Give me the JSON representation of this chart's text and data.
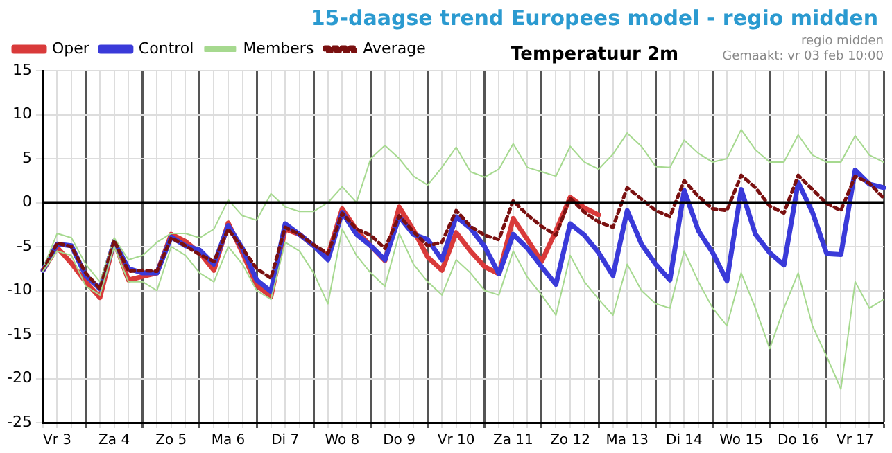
{
  "chart_data": {
    "type": "line",
    "title": "15-daagse trend Europees model - regio midden",
    "subtitle": "Temperatuur 2m",
    "annotations": [
      "regio midden",
      "Gemaakt: vr 03 feb 10:00"
    ],
    "categories": [
      null,
      "Vr 3",
      null,
      null,
      null,
      "Za 4",
      null,
      null,
      null,
      "Zo 5",
      null,
      null,
      null,
      "Ma 6",
      null,
      null,
      null,
      "Di 7",
      null,
      null,
      null,
      "Wo 8",
      null,
      null,
      null,
      "Do 9",
      null,
      null,
      null,
      "Vr 10",
      null,
      null,
      null,
      "Za 11",
      null,
      null,
      null,
      "Zo 12",
      null,
      null,
      null,
      "Ma 13",
      null,
      null,
      null,
      "Di 14",
      null,
      null,
      null,
      "Wo 15",
      null,
      null,
      null,
      "Do 16",
      null,
      null,
      null,
      "Vr 17",
      null,
      null
    ],
    "ylim": [
      -25,
      15
    ],
    "yticks": [
      -25,
      -20,
      -15,
      -10,
      -5,
      0,
      5,
      10,
      15
    ],
    "grid": true,
    "legend": "top left",
    "marker": "none",
    "ref_lines": [
      {
        "axis": "y",
        "value": 0,
        "label": null,
        "color": "#000000"
      }
    ],
    "series": [
      {
        "name": "Oper",
        "color": "#d93a3a",
        "line_style": "solid",
        "values": [
          -7.7,
          -5.1,
          -6.9,
          -9.0,
          -10.8,
          -4.4,
          -8.8,
          -8.4,
          -8.0,
          -3.6,
          -4.4,
          -5.7,
          -7.7,
          -2.3,
          -5.7,
          -9.4,
          -10.7,
          -3.0,
          -3.6,
          -4.9,
          -6.0,
          -0.7,
          -3.1,
          -4.9,
          -6.6,
          -0.5,
          -3.1,
          -6.2,
          -7.7,
          -3.4,
          -5.5,
          -7.3,
          -8.1,
          -1.8,
          -4.2,
          -6.7,
          -3.2,
          0.6,
          -0.6,
          -1.4,
          null,
          null,
          null,
          null,
          null,
          null,
          null,
          null,
          null,
          null,
          null,
          null,
          null,
          null,
          null,
          null,
          null,
          null,
          null,
          null
        ]
      },
      {
        "name": "Control",
        "color": "#3a3ad9",
        "line_style": "solid",
        "values": [
          -7.7,
          -4.7,
          -4.9,
          -8.3,
          -9.8,
          -4.4,
          -7.5,
          -8.0,
          -8.0,
          -3.9,
          -4.9,
          -5.4,
          -7.0,
          -2.6,
          -5.2,
          -8.8,
          -10.1,
          -2.4,
          -3.6,
          -4.9,
          -6.5,
          -1.1,
          -3.6,
          -4.9,
          -6.5,
          -1.6,
          -3.6,
          -4.2,
          -6.5,
          -1.6,
          -2.9,
          -5.0,
          -8.1,
          -3.6,
          -5.2,
          -7.3,
          -9.3,
          -2.4,
          -3.7,
          -5.7,
          -8.3,
          -0.9,
          -4.7,
          -7.0,
          -8.8,
          1.4,
          -3.2,
          -5.7,
          -8.9,
          1.5,
          -3.6,
          -5.7,
          -7.1,
          2.3,
          -1.1,
          -5.8,
          -5.9,
          3.7,
          2.1,
          1.7
        ]
      },
      {
        "name": "Members",
        "color": "#a6d98f",
        "line_style": "solid",
        "values": [
          -7.5,
          -3.5,
          -4.0,
          -7.0,
          -9.0,
          -4.0,
          -6.5,
          -6.0,
          -4.5,
          -3.5,
          -3.5,
          -4.0,
          -3.0,
          0.3,
          -1.5,
          -2.0,
          1.0,
          -0.5,
          -1.0,
          -1.0,
          0.0,
          1.8,
          0.0,
          5.0,
          6.5,
          5.0,
          3.0,
          2.0,
          4.0,
          6.3,
          3.5,
          2.9,
          3.8,
          6.7,
          4.0,
          3.5,
          3.0,
          6.4,
          4.6,
          3.8,
          5.5,
          7.9,
          6.4,
          4.1,
          4.0,
          7.1,
          5.6,
          4.6,
          5.0,
          8.3,
          6.0,
          4.6,
          4.6,
          7.7,
          5.4,
          4.6,
          4.6,
          7.6,
          5.4,
          4.6
        ]
      },
      {
        "name": "Average",
        "color": "#7a1010",
        "line_style": "dotted",
        "values": [
          -7.7,
          -4.6,
          -5.0,
          -8.0,
          -9.8,
          -4.3,
          -7.8,
          -7.7,
          -7.8,
          -4.0,
          -4.9,
          -5.9,
          -6.7,
          -3.0,
          -5.2,
          -7.5,
          -8.6,
          -2.8,
          -3.6,
          -4.8,
          -5.8,
          -1.2,
          -3.0,
          -3.7,
          -5.2,
          -1.5,
          -3.3,
          -4.9,
          -4.5,
          -0.9,
          -2.7,
          -3.7,
          -4.2,
          0.2,
          -1.4,
          -2.7,
          -3.7,
          0.5,
          -1.1,
          -2.2,
          -2.8,
          1.7,
          0.4,
          -0.9,
          -1.6,
          2.5,
          0.7,
          -0.7,
          -0.9,
          3.1,
          1.7,
          -0.4,
          -1.2,
          3.1,
          1.5,
          -0.1,
          -0.9,
          3.0,
          2.2,
          0.5
        ]
      },
      {
        "color": "#a6d98f",
        "line_style": "solid",
        "values": [
          -7.8,
          -5.5,
          -6.0,
          -9.5,
          -10.5,
          -5.0,
          -9.0,
          -9.0,
          -10.0,
          -5.0,
          -6.0,
          -8.0,
          -9.0,
          -5.0,
          -7.0,
          -10.0,
          -11.0,
          -4.5,
          -5.5,
          -8.0,
          -11.5,
          -3.0,
          -6.0,
          -8.0,
          -9.5,
          -3.5,
          -7.0,
          -9.0,
          -10.5,
          -6.5,
          -8.0,
          -10.0,
          -10.5,
          -5.5,
          -8.5,
          -10.5,
          -12.8,
          -6.0,
          -9.0,
          -11.0,
          -12.8,
          -7.0,
          -10.0,
          -11.5,
          -12.0,
          -5.5,
          -9.0,
          -12.0,
          -14.0,
          -8.0,
          -12.0,
          -16.6,
          -12.0,
          -8.0,
          -14.0,
          -17.5,
          -21.2,
          -9.0,
          -12.0,
          -11.0
        ]
      }
    ]
  }
}
